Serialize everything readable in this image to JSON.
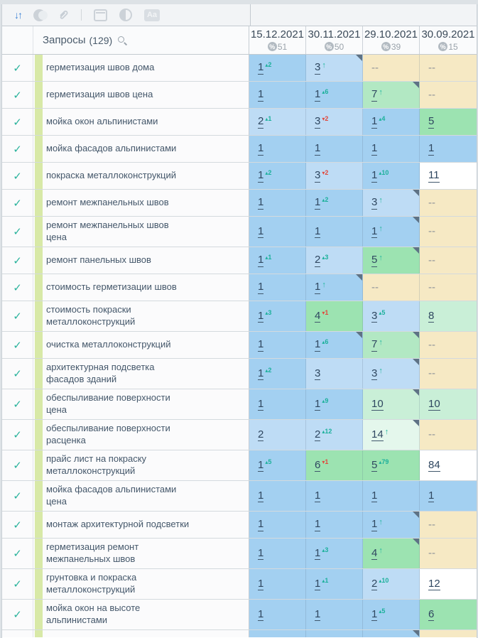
{
  "toolbar": {
    "aa_label": "Aa",
    "sort_glyph": "↓↑"
  },
  "header": {
    "queries_label": "Запросы",
    "queries_count": "(129)",
    "percent_symbol": "%",
    "columns": [
      {
        "date": "15.12.2021",
        "percent": "51"
      },
      {
        "date": "30.11.2021",
        "percent": "50"
      },
      {
        "date": "29.10.2021",
        "percent": "39"
      },
      {
        "date": "30.09.2021",
        "percent": "15"
      }
    ]
  },
  "colors": {
    "accent_blue": "#3d82d6",
    "check_teal": "#2bb39c",
    "change_up_teal": "#1cb09b",
    "change_down_red": "#e0493d",
    "cell_pos1_blue": "#a3d0f1",
    "cell_pos23_blue": "#bedcf5",
    "cell_green_strong": "#9ce3b1",
    "cell_green_mid": "#b2e8c3",
    "cell_green_light": "#c9efd7",
    "cell_green_mint": "#e4f7ec",
    "cell_white": "#ffffff",
    "cell_empty_beige": "#f6e9c4",
    "group_stripe_green": "#d8e9a7",
    "corner_marker": "#5e7285"
  },
  "rows": [
    {
      "keyword": "герметизация швов дома",
      "cells": [
        {
          "pos": "1",
          "chg": "2",
          "dir": "up",
          "bg": "p1"
        },
        {
          "pos": "3",
          "arrow": true,
          "corner": true,
          "bg": "p23"
        },
        {
          "pos": "--",
          "bg": "na"
        },
        {
          "pos": "--",
          "bg": "na"
        }
      ]
    },
    {
      "keyword": "герметизация швов цена",
      "cells": [
        {
          "pos": "1",
          "bg": "p1"
        },
        {
          "pos": "1",
          "chg": "6",
          "dir": "up",
          "bg": "p1"
        },
        {
          "pos": "7",
          "arrow": true,
          "corner": true,
          "bg": "g2"
        },
        {
          "pos": "--",
          "bg": "na"
        }
      ]
    },
    {
      "keyword": "мойка окон альпинистами",
      "cells": [
        {
          "pos": "2",
          "chg": "1",
          "dir": "up",
          "bg": "p23"
        },
        {
          "pos": "3",
          "chg": "2",
          "dir": "down",
          "bg": "p23"
        },
        {
          "pos": "1",
          "chg": "4",
          "dir": "up",
          "bg": "p1"
        },
        {
          "pos": "5",
          "bg": "g1"
        }
      ]
    },
    {
      "keyword": "мойка фасадов альпинистами",
      "cells": [
        {
          "pos": "1",
          "bg": "p1"
        },
        {
          "pos": "1",
          "bg": "p1"
        },
        {
          "pos": "1",
          "bg": "p1"
        },
        {
          "pos": "1",
          "bg": "p1"
        }
      ]
    },
    {
      "keyword": "покраска металлоконструкций",
      "cells": [
        {
          "pos": "1",
          "chg": "2",
          "dir": "up",
          "bg": "p1"
        },
        {
          "pos": "3",
          "chg": "2",
          "dir": "down",
          "bg": "p23"
        },
        {
          "pos": "1",
          "chg": "10",
          "dir": "up",
          "bg": "p1"
        },
        {
          "pos": "11",
          "bg": "white"
        }
      ]
    },
    {
      "keyword": "ремонт межпанельных швов",
      "cells": [
        {
          "pos": "1",
          "bg": "p1"
        },
        {
          "pos": "1",
          "chg": "2",
          "dir": "up",
          "bg": "p1"
        },
        {
          "pos": "3",
          "arrow": true,
          "corner": true,
          "bg": "p23"
        },
        {
          "pos": "--",
          "bg": "na"
        }
      ]
    },
    {
      "keyword": "ремонт межпанельных швов\nцена",
      "cells": [
        {
          "pos": "1",
          "bg": "p1"
        },
        {
          "pos": "1",
          "bg": "p1"
        },
        {
          "pos": "1",
          "arrow": true,
          "corner": true,
          "bg": "p1"
        },
        {
          "pos": "--",
          "bg": "na"
        }
      ]
    },
    {
      "keyword": "ремонт панельных швов",
      "cells": [
        {
          "pos": "1",
          "chg": "1",
          "dir": "up",
          "bg": "p1"
        },
        {
          "pos": "2",
          "chg": "3",
          "dir": "up",
          "bg": "p23"
        },
        {
          "pos": "5",
          "arrow": true,
          "corner": true,
          "bg": "g1"
        },
        {
          "pos": "--",
          "bg": "na"
        }
      ]
    },
    {
      "keyword": "стоимость герметизации швов",
      "cells": [
        {
          "pos": "1",
          "bg": "p1"
        },
        {
          "pos": "1",
          "arrow": true,
          "corner": true,
          "bg": "p1"
        },
        {
          "pos": "--",
          "bg": "na"
        },
        {
          "pos": "--",
          "bg": "na"
        }
      ]
    },
    {
      "keyword": "стоимость покраски\nметаллоконструкций",
      "cells": [
        {
          "pos": "1",
          "chg": "3",
          "dir": "up",
          "bg": "p1"
        },
        {
          "pos": "4",
          "chg": "1",
          "dir": "down",
          "bg": "g1"
        },
        {
          "pos": "3",
          "chg": "5",
          "dir": "up",
          "bg": "p23"
        },
        {
          "pos": "8",
          "bg": "g3"
        }
      ]
    },
    {
      "keyword": "очистка металлоконструкций",
      "cells": [
        {
          "pos": "1",
          "bg": "p1"
        },
        {
          "pos": "1",
          "chg": "6",
          "dir": "up",
          "corner": true,
          "bg": "p1"
        },
        {
          "pos": "7",
          "arrow": true,
          "corner": true,
          "bg": "g2"
        },
        {
          "pos": "--",
          "bg": "na"
        }
      ]
    },
    {
      "keyword": "архитектурная подсветка\nфасадов зданий",
      "cells": [
        {
          "pos": "1",
          "chg": "2",
          "dir": "up",
          "bg": "p1"
        },
        {
          "pos": "3",
          "bg": "p23"
        },
        {
          "pos": "3",
          "arrow": true,
          "corner": true,
          "bg": "p23"
        },
        {
          "pos": "--",
          "bg": "na"
        }
      ]
    },
    {
      "keyword": "обеспыливание поверхности\nцена",
      "cells": [
        {
          "pos": "1",
          "bg": "p1"
        },
        {
          "pos": "1",
          "chg": "9",
          "dir": "up",
          "bg": "p1"
        },
        {
          "pos": "10",
          "corner": true,
          "bg": "g3"
        },
        {
          "pos": "10",
          "bg": "g3"
        }
      ]
    },
    {
      "keyword": "обеспыливание поверхности\nрасценка",
      "cells": [
        {
          "pos": "2",
          "bg": "p23"
        },
        {
          "pos": "2",
          "chg": "12",
          "dir": "up",
          "bg": "p23"
        },
        {
          "pos": "14",
          "arrow": true,
          "corner": true,
          "bg": "mint"
        },
        {
          "pos": "--",
          "bg": "na"
        }
      ]
    },
    {
      "keyword": "прайс лист на покраску\nметаллоконструкций",
      "cells": [
        {
          "pos": "1",
          "chg": "5",
          "dir": "up",
          "bg": "p1"
        },
        {
          "pos": "6",
          "chg": "1",
          "dir": "down",
          "bg": "g1"
        },
        {
          "pos": "5",
          "chg": "79",
          "dir": "up",
          "bg": "g1"
        },
        {
          "pos": "84",
          "bg": "white"
        }
      ]
    },
    {
      "keyword": "мойка фасадов альпинистами\nцена",
      "cells": [
        {
          "pos": "1",
          "bg": "p1"
        },
        {
          "pos": "1",
          "bg": "p1"
        },
        {
          "pos": "1",
          "bg": "p1"
        },
        {
          "pos": "1",
          "bg": "p1"
        }
      ]
    },
    {
      "keyword": "монтаж архитектурной подсветки",
      "cells": [
        {
          "pos": "1",
          "bg": "p1"
        },
        {
          "pos": "1",
          "bg": "p1"
        },
        {
          "pos": "1",
          "arrow": true,
          "corner": true,
          "bg": "p1"
        },
        {
          "pos": "--",
          "bg": "na"
        }
      ]
    },
    {
      "keyword": "герметизация ремонт\nмежпанельных швов",
      "cells": [
        {
          "pos": "1",
          "bg": "p1"
        },
        {
          "pos": "1",
          "chg": "3",
          "dir": "up",
          "bg": "p1"
        },
        {
          "pos": "4",
          "arrow": true,
          "corner": true,
          "bg": "g1"
        },
        {
          "pos": "--",
          "bg": "na"
        }
      ]
    },
    {
      "keyword": "грунтовка и покраска\nметаллоконструкций",
      "cells": [
        {
          "pos": "1",
          "bg": "p1"
        },
        {
          "pos": "1",
          "chg": "1",
          "dir": "up",
          "bg": "p1"
        },
        {
          "pos": "2",
          "chg": "10",
          "dir": "up",
          "bg": "p23"
        },
        {
          "pos": "12",
          "bg": "white"
        }
      ]
    },
    {
      "keyword": "мойка окон на высоте\nальпинистами",
      "cells": [
        {
          "pos": "1",
          "bg": "p1"
        },
        {
          "pos": "1",
          "bg": "p1"
        },
        {
          "pos": "1",
          "chg": "5",
          "dir": "up",
          "bg": "p1"
        },
        {
          "pos": "6",
          "bg": "g1"
        }
      ]
    }
  ],
  "partial_row": {
    "cells": [
      {
        "bg": "p1"
      },
      {
        "bg": "p1"
      },
      {
        "bg": "p1",
        "corner": true
      },
      {
        "bg": "na"
      }
    ]
  }
}
